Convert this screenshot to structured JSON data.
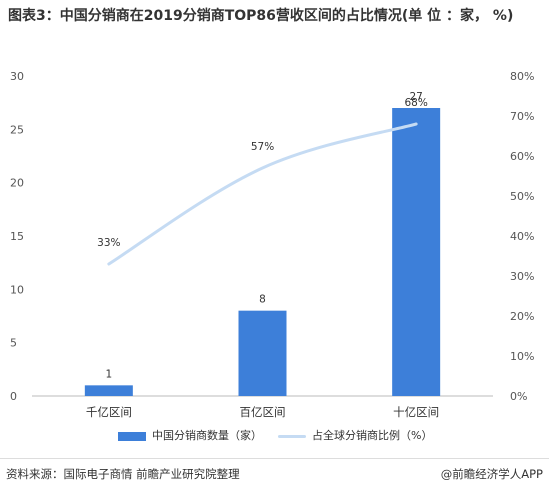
{
  "title": "图表3：中国分销商在2019分销商TOP86营收区间的占比情况(单 位 ：家， %)",
  "colors": {
    "bar": "#3d7fd9",
    "line": "#c5dbf3",
    "axis": "#bbbbbb"
  },
  "chart_data": {
    "type": "bar",
    "categories": [
      "千亿区间",
      "百亿区间",
      "十亿区间"
    ],
    "series": [
      {
        "name": "中国分销商数量（家）",
        "type": "bar",
        "axis": "left",
        "values": [
          1,
          8,
          27
        ],
        "labels": [
          "1",
          "8",
          "27"
        ]
      },
      {
        "name": "占全球分销商比例（%）",
        "type": "line",
        "axis": "right",
        "values": [
          33,
          57,
          68
        ],
        "labels": [
          "33%",
          "57%",
          "68%"
        ]
      }
    ],
    "y_left": {
      "ylim": [
        0,
        30
      ],
      "ticks": [
        "0",
        "5",
        "10",
        "15",
        "20",
        "25",
        "30"
      ]
    },
    "y_right": {
      "ylim": [
        0,
        80
      ],
      "ticks": [
        "0%",
        "10%",
        "20%",
        "30%",
        "40%",
        "50%",
        "60%",
        "70%",
        "80%"
      ]
    },
    "legend_position": "bottom",
    "grid": false
  },
  "legend": {
    "bar_label": "中国分销商数量（家）",
    "line_label": "占全球分销商比例（%）"
  },
  "footer": {
    "source": "资料来源：国际电子商情 前瞻产业研究院整理",
    "brand": "@前瞻经济学人APP"
  }
}
